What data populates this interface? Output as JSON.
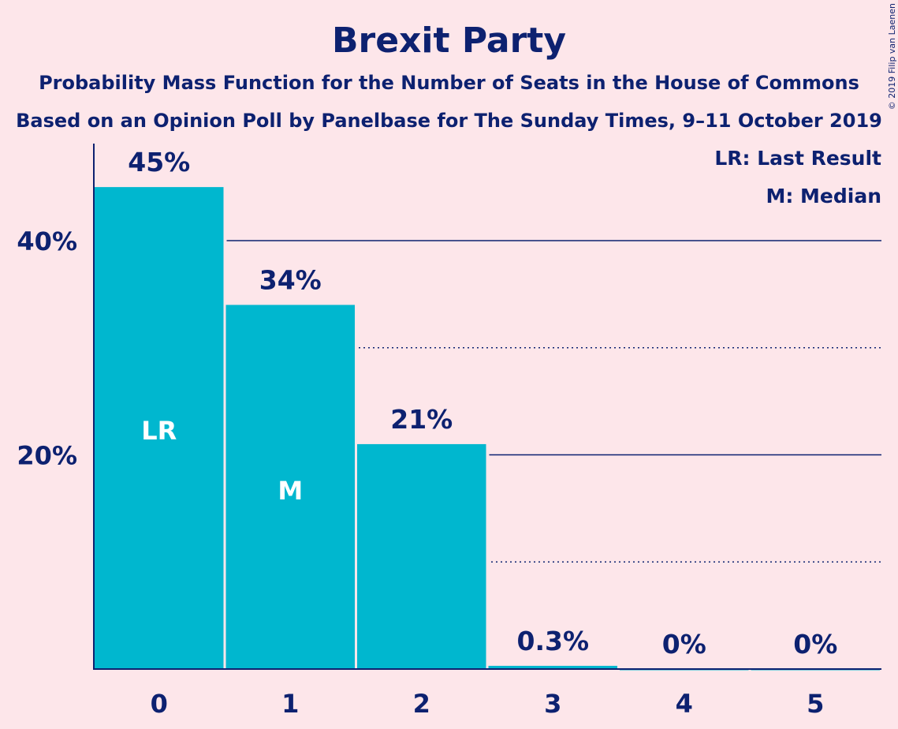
{
  "chart_data": {
    "type": "bar",
    "title": "Brexit Party",
    "subtitle": "Probability Mass Function for the Number of Seats in the House of Commons",
    "subtitle2": "Based on an Opinion Poll by Panelbase for The Sunday Times, 9–11 October 2019",
    "categories": [
      "0",
      "1",
      "2",
      "3",
      "4",
      "5"
    ],
    "values": [
      45,
      34,
      21,
      0.3,
      0,
      0
    ],
    "value_labels": [
      "45%",
      "34%",
      "21%",
      "0.3%",
      "0%",
      "0%"
    ],
    "bar_annotations": [
      "LR",
      "M",
      "",
      "",
      "",
      ""
    ],
    "y_ticks": [
      20,
      40
    ],
    "y_tick_labels": [
      "20%",
      "40%"
    ],
    "y_minor_ticks": [
      10,
      30
    ],
    "ylim": [
      0,
      49
    ],
    "legend": [
      "LR: Last Result",
      "M: Median"
    ],
    "legend_position": "top-right",
    "bar_color": "#00b7cf",
    "text_color": "#0d2170",
    "background_color": "#fde6ea",
    "copyright": "© 2019 Filip van Laenen"
  }
}
